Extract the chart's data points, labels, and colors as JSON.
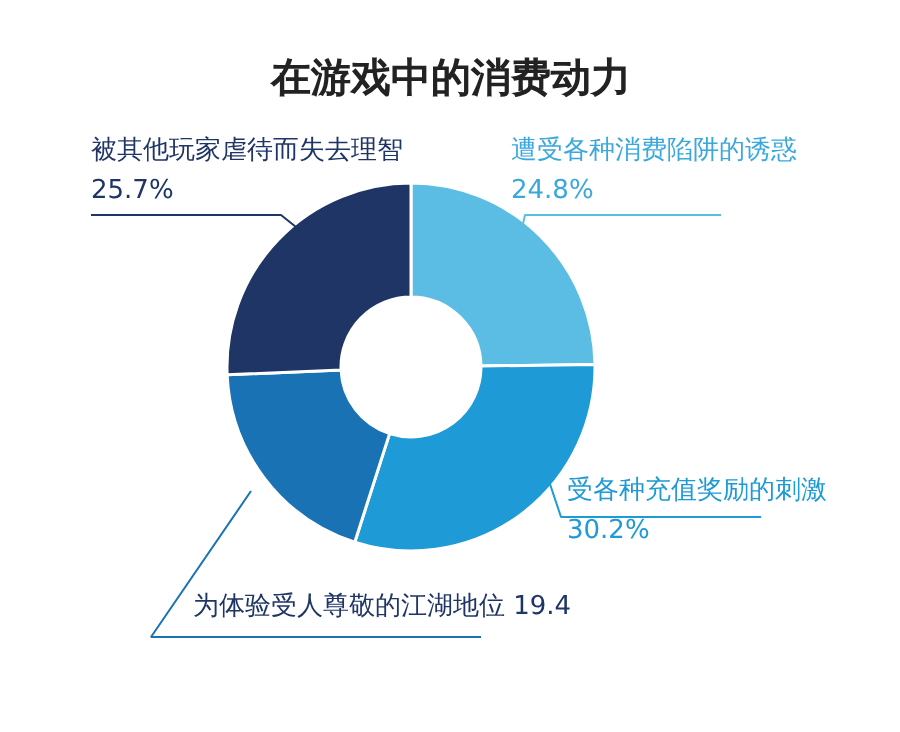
{
  "chart_data": {
    "type": "donut",
    "title": "在游戏中的消费动力",
    "categories": [
      "遭受各种消费陷阱的诱惑",
      "受各种充值奖励的刺激",
      "为体验受人尊敬的江湖地位",
      "被其他玩家虐待而失去理智"
    ],
    "values": [
      24.8,
      30.2,
      19.4,
      25.7
    ],
    "value_labels": [
      "24.8%",
      "30.2%",
      "19.4",
      "25.7%"
    ],
    "colors": [
      "#5bbde4",
      "#1e9ad6",
      "#1872b4",
      "#1f3566"
    ]
  }
}
